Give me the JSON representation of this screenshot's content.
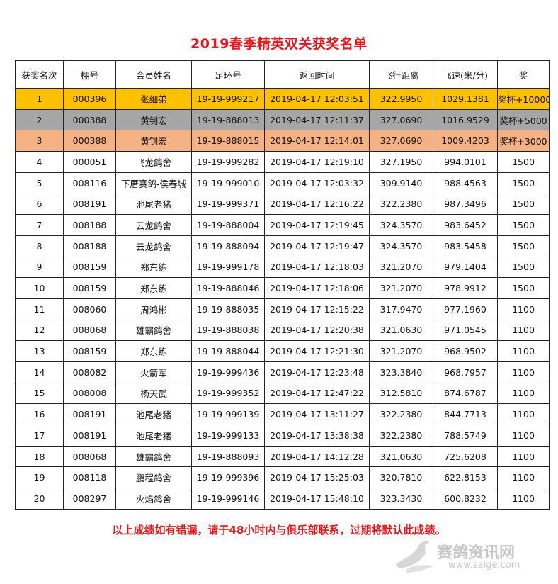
{
  "title": "2019春季精英双关获奖名单",
  "columns": [
    "获奖名次",
    "棚号",
    "会员姓名",
    "足环号",
    "返回时间",
    "飞行距离",
    "飞速(米/分)",
    "奖"
  ],
  "rows": [
    [
      "1",
      "000396",
      "张细弟",
      "19-19-999217",
      "2019-04-17 12:03:51",
      "322.9950",
      "1029.1381",
      "奖杯+10000"
    ],
    [
      "2",
      "000388",
      "黄钊宏",
      "19-19-888013",
      "2019-04-17 12:11:37",
      "327.0690",
      "1016.9529",
      "奖杯+5000"
    ],
    [
      "3",
      "000388",
      "黄钊宏",
      "19-19-888015",
      "2019-04-17 12:14:01",
      "327.0690",
      "1009.4203",
      "奖杯+3000"
    ],
    [
      "4",
      "000051",
      "飞龙鸽舍",
      "19-19-999282",
      "2019-04-17 12:19:10",
      "327.1950",
      "994.0101",
      "1500"
    ],
    [
      "5",
      "008116",
      "下厝赛鸽-侯春城",
      "19-19-999010",
      "2019-04-17 12:03:32",
      "309.9140",
      "988.4563",
      "1500"
    ],
    [
      "6",
      "008191",
      "池尾老猪",
      "19-19-999371",
      "2019-04-17 12:16:22",
      "322.2380",
      "987.3496",
      "1500"
    ],
    [
      "7",
      "008188",
      "云龙鸽舍",
      "19-19-888004",
      "2019-04-17 12:19:45",
      "324.3570",
      "983.6452",
      "1500"
    ],
    [
      "8",
      "008188",
      "云龙鸽舍",
      "19-19-888094",
      "2019-04-17 12:19:47",
      "324.3570",
      "983.5458",
      "1500"
    ],
    [
      "9",
      "008159",
      "郑东练",
      "19-19-999178",
      "2019-04-17 12:18:03",
      "321.2070",
      "979.1404",
      "1500"
    ],
    [
      "10",
      "008159",
      "郑东练",
      "19-19-888046",
      "2019-04-17 12:18:06",
      "321.2070",
      "978.9912",
      "1500"
    ],
    [
      "11",
      "008060",
      "周鸿彬",
      "19-19-888035",
      "2019-04-17 12:15:22",
      "317.9470",
      "977.1960",
      "1100"
    ],
    [
      "12",
      "008068",
      "雄霸鸽舍",
      "19-19-888038",
      "2019-04-17 12:20:38",
      "321.0630",
      "971.0545",
      "1100"
    ],
    [
      "13",
      "008159",
      "郑东练",
      "19-19-888044",
      "2019-04-17 12:21:30",
      "321.2070",
      "968.9502",
      "1100"
    ],
    [
      "14",
      "008082",
      "火箭军",
      "19-19-999436",
      "2019-04-17 12:23:48",
      "323.3840",
      "968.7957",
      "1100"
    ],
    [
      "15",
      "008008",
      "杨天武",
      "19-19-999352",
      "2019-04-17 12:47:22",
      "312.5810",
      "874.6787",
      "1100"
    ],
    [
      "16",
      "008191",
      "池尾老猪",
      "19-19-999139",
      "2019-04-17 13:11:27",
      "322.2380",
      "844.7713",
      "1100"
    ],
    [
      "17",
      "008191",
      "池尾老猪",
      "19-19-999133",
      "2019-04-17 13:38:38",
      "322.2380",
      "788.5749",
      "1100"
    ],
    [
      "18",
      "008068",
      "雄霸鸽舍",
      "19-19-888093",
      "2019-04-17 14:12:28",
      "321.0630",
      "725.6208",
      "1100"
    ],
    [
      "19",
      "008118",
      "鹏程鸽舍",
      "19-19-999396",
      "2019-04-17 15:25:03",
      "320.7810",
      "622.8153",
      "1100"
    ],
    [
      "20",
      "008297",
      "火焰鸽舍",
      "19-19-999146",
      "2019-04-17 15:48:10",
      "323.3430",
      "600.8232",
      "1100"
    ]
  ],
  "footer": "以上成绩如有错漏，请于48小时内与俱乐部联系，过期将默认此成绩。",
  "watermark": {
    "brand": "赛鸽资讯网",
    "url": "www.saige.com"
  },
  "colors": {
    "title": "#e8141c",
    "rank1": "#ffc000",
    "rank2": "#a6a6a6",
    "rank3": "#f4b183"
  }
}
